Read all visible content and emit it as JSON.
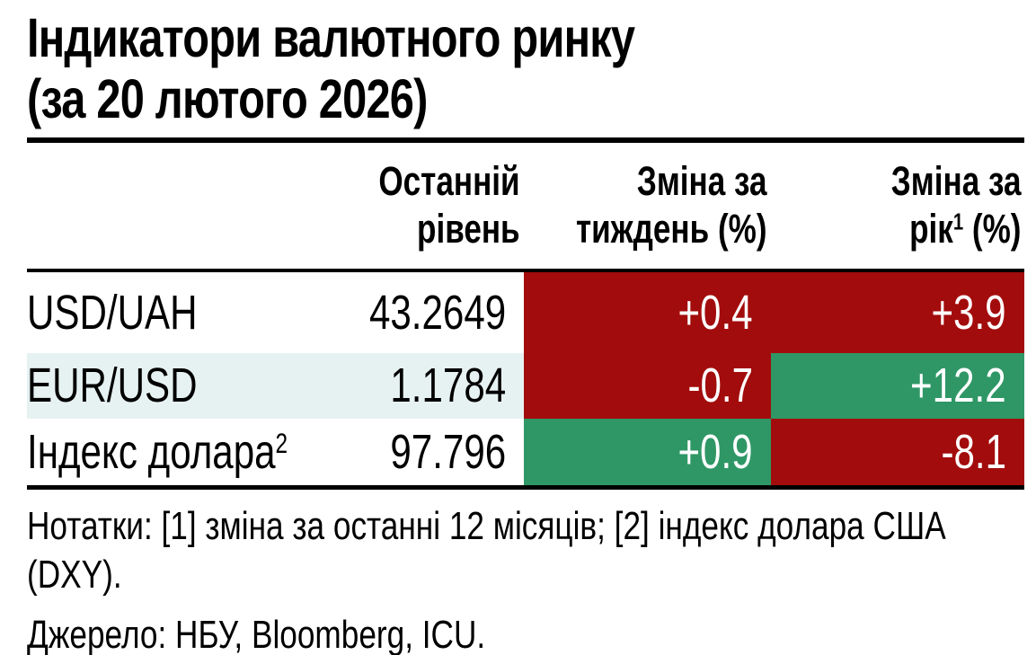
{
  "title": {
    "line1": "Індикатори валютного ринку",
    "line2": "(за 20 лютого 2026)"
  },
  "table": {
    "headers": {
      "level": {
        "line1": "Останній",
        "line2": "рівень"
      },
      "week": {
        "line1": "Зміна за",
        "line2": "тиждень (%)"
      },
      "year": {
        "line1": "Зміна за",
        "line2_pre": "рік",
        "sup": "1",
        "line2_post": " (%)"
      }
    },
    "rows": [
      {
        "label": "USD/UAH",
        "label_sup": "",
        "level": "43.2649",
        "week": {
          "value": "+0.4",
          "tone": "negative"
        },
        "year": {
          "value": "+3.9",
          "tone": "negative"
        }
      },
      {
        "label": "EUR/USD",
        "label_sup": "",
        "level": "1.1784",
        "week": {
          "value": "-0.7",
          "tone": "negative"
        },
        "year": {
          "value": "+12.2",
          "tone": "positive"
        }
      },
      {
        "label": "Індекс долара",
        "label_sup": "2",
        "level": "97.796",
        "week": {
          "value": "+0.9",
          "tone": "positive"
        },
        "year": {
          "value": "-8.1",
          "tone": "negative"
        }
      }
    ]
  },
  "notes": "Нотатки: [1] зміна за останні 12 місяців; [2] індекс долара США (DXY).",
  "source": "Джерело: НБУ, Bloomberg, ICU.",
  "colors": {
    "negative": "#a30c0c",
    "positive": "#2f9766",
    "row_alt": "#e6f2f1",
    "text": "#000000",
    "cell_text": "#ffffff"
  },
  "chart_data": {
    "type": "table",
    "title": "Індикатори валютного ринку (за 20 лютого 2026)",
    "columns": [
      "",
      "Останній рівень",
      "Зміна за тиждень (%)",
      "Зміна за рік¹ (%)"
    ],
    "rows": [
      {
        "label": "USD/UAH",
        "last_level": 43.2649,
        "week_change_pct": 0.4,
        "year_change_pct": 3.9,
        "week_tone": "negative",
        "year_tone": "negative"
      },
      {
        "label": "EUR/USD",
        "last_level": 1.1784,
        "week_change_pct": -0.7,
        "year_change_pct": 12.2,
        "week_tone": "negative",
        "year_tone": "positive"
      },
      {
        "label": "Індекс долара²",
        "last_level": 97.796,
        "week_change_pct": 0.9,
        "year_change_pct": -8.1,
        "week_tone": "positive",
        "year_tone": "negative"
      }
    ],
    "notes": "Нотатки: [1] зміна за останні 12 місяців; [2] індекс долара США (DXY).",
    "source": "Джерело: НБУ, Bloomberg, ICU."
  }
}
